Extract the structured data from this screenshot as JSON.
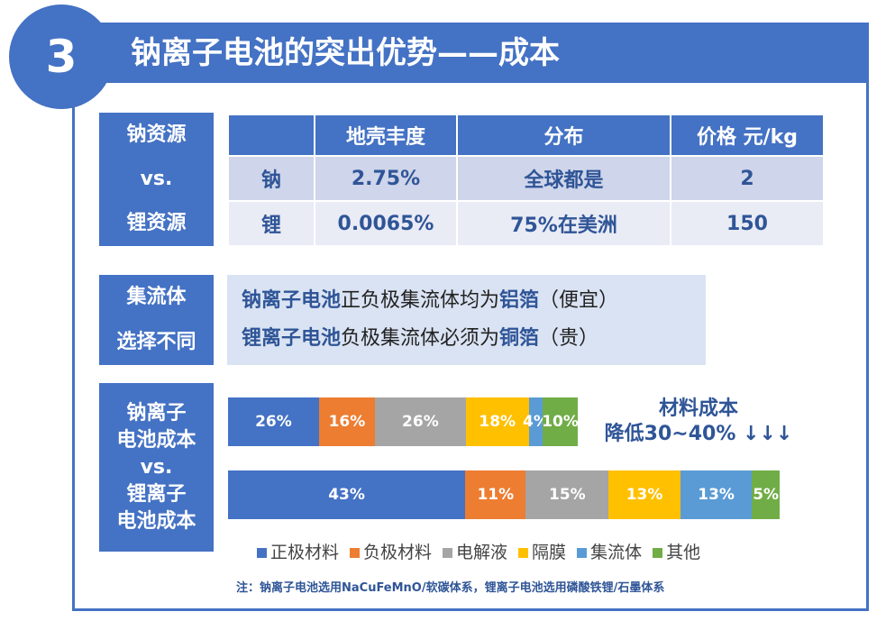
{
  "header": {
    "number": "3",
    "title": "钠离子电池的突出优势——成本"
  },
  "resource": {
    "label": [
      "钠资源",
      "vs.",
      "锂资源"
    ],
    "columns": [
      "",
      "地壳丰度",
      "分布",
      "价格 元/kg"
    ],
    "rows": [
      [
        "钠",
        "2.75%",
        "全球都是",
        "2"
      ],
      [
        "锂",
        "0.0065%",
        "75%在美洲",
        "150"
      ]
    ]
  },
  "collector": {
    "label": [
      "集流体",
      "选择不同"
    ],
    "lines": [
      {
        "bold": "钠离子电池",
        "mid": "正负极集流体均为",
        "bold2": "铝箔",
        "tail": "（便宜）"
      },
      {
        "bold": "锂离子电池",
        "mid": "负极集流体必须为",
        "bold2": "铜箔",
        "tail": "（贵）"
      }
    ]
  },
  "cost": {
    "label": [
      "钠离子",
      "电池成本",
      "vs.",
      "锂离子",
      "电池成本"
    ],
    "annotation": [
      "材料成本",
      "降低30~40% ↓↓↓"
    ],
    "note": "注：钠离子电池选用NaCuFeMnO/软碳体系，锂离子电池选用磷酸铁锂/石墨体系"
  },
  "chart_data": {
    "type": "bar",
    "stacked": true,
    "orientation": "horizontal",
    "categories": [
      "正极材料",
      "负极材料",
      "电解液",
      "隔膜",
      "集流体",
      "其他"
    ],
    "colors": [
      "#4472C4",
      "#ED7D31",
      "#A5A5A5",
      "#FFC000",
      "#5B9BD5",
      "#70AD47"
    ],
    "series": [
      {
        "values": [
          26,
          16,
          26,
          18,
          4,
          10
        ],
        "labels": [
          "26%",
          "16%",
          "26%",
          "18%",
          "4%",
          "10%"
        ],
        "relative_total": 0.634
      },
      {
        "values": [
          43,
          11,
          15,
          13,
          13,
          5
        ],
        "labels": [
          "43%",
          "11%",
          "15%",
          "13%",
          "13%",
          "5%"
        ],
        "relative_total": 1
      }
    ],
    "legend": "bottom"
  }
}
